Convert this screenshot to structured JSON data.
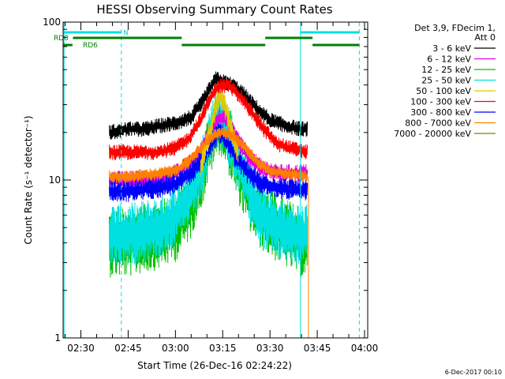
{
  "chart_data": {
    "type": "line",
    "title": "HESSI Observing Summary Count Rates",
    "xlabel": "Start Time (26-Dec-16 02:24:22)",
    "ylabel": "Count Rate (s⁻¹ detector⁻¹)",
    "y_scale": "log",
    "ylim": [
      1,
      100
    ],
    "xlim": [
      "02:24:22",
      "04:01:00"
    ],
    "x_ticks": [
      "02:30",
      "02:45",
      "03:00",
      "03:15",
      "03:30",
      "03:45",
      "04:00"
    ],
    "y_ticks": [
      "1",
      "10",
      "100"
    ],
    "legend_position": "right",
    "legend_header": [
      "Det 3,9, FDecim 1,",
      "Att 0"
    ],
    "series": [
      {
        "name": "3 - 6 keV",
        "color": "#000000",
        "start": "02:39",
        "end": "03:42",
        "x": [
          "02:39",
          "02:45",
          "02:50",
          "02:55",
          "03:00",
          "03:05",
          "03:08",
          "03:11",
          "03:13",
          "03:15",
          "03:18",
          "03:21",
          "03:24",
          "03:27",
          "03:30",
          "03:35",
          "03:40",
          "03:42"
        ],
        "values": [
          20,
          21,
          21,
          22,
          23,
          25,
          30,
          38,
          44,
          42,
          40,
          36,
          31,
          27,
          24,
          22,
          21,
          21
        ]
      },
      {
        "name": "6 - 12 keV",
        "color": "#e000e0",
        "start": "02:39",
        "end": "03:42",
        "x": [
          "02:39",
          "02:45",
          "02:55",
          "03:00",
          "03:05",
          "03:09",
          "03:12",
          "03:14",
          "03:16",
          "03:19",
          "03:23",
          "03:27",
          "03:32",
          "03:42"
        ],
        "values": [
          10,
          10,
          10,
          11,
          13,
          16,
          22,
          25,
          24,
          19,
          14,
          12,
          11,
          11
        ]
      },
      {
        "name": "12 - 25 keV",
        "color": "#00c000",
        "start": "02:39",
        "end": "03:42",
        "x": [
          "02:39",
          "02:45",
          "02:55",
          "03:00",
          "03:05",
          "03:09",
          "03:12",
          "03:14",
          "03:16",
          "03:19",
          "03:23",
          "03:27",
          "03:32",
          "03:40",
          "03:42"
        ],
        "values": [
          4,
          4,
          4.5,
          5,
          7,
          12,
          20,
          24,
          20,
          13,
          8,
          6,
          5,
          4,
          4
        ]
      },
      {
        "name": "25 - 50 keV",
        "color": "#00e0e0",
        "start": "02:39",
        "end": "03:42",
        "x": [
          "02:39",
          "02:45",
          "02:55",
          "03:00",
          "03:05",
          "03:09",
          "03:12",
          "03:14",
          "03:16",
          "03:19",
          "03:23",
          "03:27",
          "03:32",
          "03:40",
          "03:42"
        ],
        "values": [
          4.5,
          4.5,
          5,
          6,
          8,
          13,
          22,
          26,
          22,
          14,
          9,
          6,
          5,
          4.5,
          4.5
        ]
      },
      {
        "name": "50 - 100 keV",
        "color": "#e0c800",
        "start": "03:08",
        "end": "03:20",
        "x": [
          "03:08",
          "03:11",
          "03:13",
          "03:14",
          "03:16",
          "03:18",
          "03:20"
        ],
        "values": [
          12,
          20,
          30,
          35,
          28,
          20,
          14
        ]
      },
      {
        "name": "100 - 300 keV",
        "color": "#ff0000",
        "start": "02:39",
        "end": "03:42",
        "x": [
          "02:39",
          "02:45",
          "02:55",
          "03:00",
          "03:04",
          "03:08",
          "03:11",
          "03:13",
          "03:15",
          "03:18",
          "03:21",
          "03:24",
          "03:28",
          "03:32",
          "03:36",
          "03:42"
        ],
        "values": [
          15,
          15,
          15,
          16,
          18,
          24,
          33,
          38,
          40,
          38,
          33,
          27,
          21,
          17,
          16,
          15
        ]
      },
      {
        "name": "300 - 800 keV",
        "color": "#0000ff",
        "start": "02:39",
        "end": "03:42",
        "x": [
          "02:39",
          "02:45",
          "02:55",
          "03:00",
          "03:05",
          "03:09",
          "03:12",
          "03:14",
          "03:16",
          "03:19",
          "03:23",
          "03:27",
          "03:32",
          "03:42"
        ],
        "values": [
          8.5,
          8.5,
          9,
          9.5,
          11,
          14,
          18,
          20,
          18,
          14,
          11,
          9.5,
          9,
          8.5
        ]
      },
      {
        "name": "800 - 7000 keV",
        "color": "#ff8000",
        "start": "02:39",
        "end": "03:42",
        "x": [
          "02:39",
          "02:45",
          "02:55",
          "03:00",
          "03:04",
          "03:08",
          "03:12",
          "03:15",
          "03:18",
          "03:22",
          "03:26",
          "03:30",
          "03:35",
          "03:42"
        ],
        "values": [
          10.5,
          10.5,
          11,
          11.5,
          13,
          16,
          19,
          20,
          19,
          16,
          13,
          11.5,
          11,
          10.5
        ]
      },
      {
        "name": "7000 - 20000 keV",
        "color": "#808000",
        "start": "02:39",
        "end": "03:42",
        "x": [],
        "values": []
      }
    ],
    "annotations": {
      "night_label": "N",
      "rd0_label": "RD0",
      "rd6_label": "RD6"
    }
  },
  "footer": {
    "timestamp": "6-Dec-2017 00:10"
  }
}
